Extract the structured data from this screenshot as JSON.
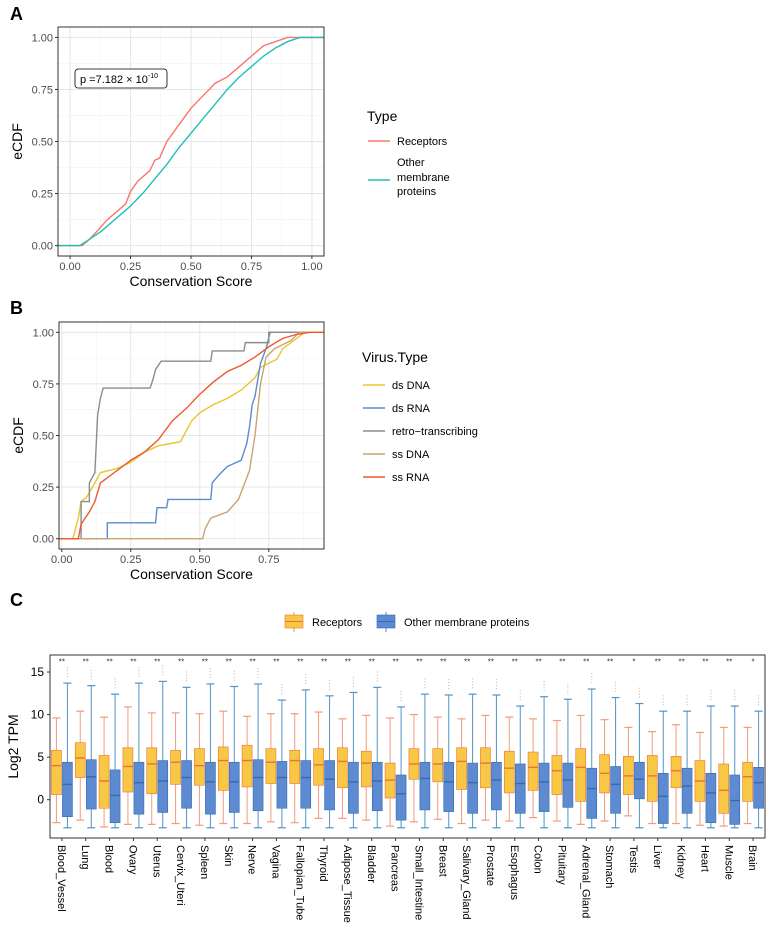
{
  "chart_data": [
    {
      "panel": "A",
      "type": "line",
      "xlabel": "Conservation Score",
      "ylabel": "eCDF",
      "xlim": [
        -0.05,
        1.05
      ],
      "ylim": [
        -0.05,
        1.05
      ],
      "xticks": [
        "0.00",
        "0.25",
        "0.50",
        "0.75",
        "1.00"
      ],
      "yticks": [
        "0.00",
        "0.25",
        "0.50",
        "0.75",
        "1.00"
      ],
      "grid": true,
      "annotation": {
        "prefix": "p =7.182 × 10",
        "exponent": "-10"
      },
      "legend": {
        "title": "Type",
        "placement": "right",
        "entries": [
          "Receptors",
          "Other",
          "membrane",
          "proteins"
        ]
      },
      "series": [
        {
          "name": "Receptors",
          "color": "#F8766D",
          "points": [
            [
              -0.05,
              0
            ],
            [
              0.05,
              0
            ],
            [
              0.08,
              0.03
            ],
            [
              0.12,
              0.08
            ],
            [
              0.15,
              0.12
            ],
            [
              0.2,
              0.17
            ],
            [
              0.23,
              0.2
            ],
            [
              0.25,
              0.26
            ],
            [
              0.28,
              0.31
            ],
            [
              0.3,
              0.33
            ],
            [
              0.33,
              0.36
            ],
            [
              0.35,
              0.41
            ],
            [
              0.37,
              0.42
            ],
            [
              0.4,
              0.5
            ],
            [
              0.45,
              0.58
            ],
            [
              0.5,
              0.66
            ],
            [
              0.55,
              0.72
            ],
            [
              0.6,
              0.78
            ],
            [
              0.65,
              0.81
            ],
            [
              0.7,
              0.86
            ],
            [
              0.75,
              0.91
            ],
            [
              0.8,
              0.96
            ],
            [
              0.85,
              0.98
            ],
            [
              0.9,
              1.0
            ],
            [
              1.05,
              1.0
            ]
          ]
        },
        {
          "name": "Other membrane proteins",
          "color": "#1FBFB8",
          "points": [
            [
              -0.05,
              0
            ],
            [
              0.04,
              0
            ],
            [
              0.08,
              0.03
            ],
            [
              0.13,
              0.07
            ],
            [
              0.2,
              0.14
            ],
            [
              0.25,
              0.19
            ],
            [
              0.3,
              0.25
            ],
            [
              0.35,
              0.32
            ],
            [
              0.4,
              0.39
            ],
            [
              0.45,
              0.47
            ],
            [
              0.5,
              0.54
            ],
            [
              0.55,
              0.61
            ],
            [
              0.6,
              0.68
            ],
            [
              0.65,
              0.75
            ],
            [
              0.7,
              0.81
            ],
            [
              0.75,
              0.86
            ],
            [
              0.8,
              0.91
            ],
            [
              0.85,
              0.95
            ],
            [
              0.9,
              0.98
            ],
            [
              0.95,
              1.0
            ],
            [
              1.05,
              1.0
            ]
          ]
        }
      ]
    },
    {
      "panel": "B",
      "type": "line",
      "xlabel": "Conservation Score",
      "ylabel": "eCDF",
      "xlim": [
        -0.01,
        0.95
      ],
      "ylim": [
        -0.05,
        1.05
      ],
      "xticks": [
        "0.00",
        "0.25",
        "0.50",
        "0.75"
      ],
      "yticks": [
        "0.00",
        "0.25",
        "0.50",
        "0.75",
        "1.00"
      ],
      "grid": true,
      "legend": {
        "title": "Virus.Type",
        "placement": "right"
      },
      "series": [
        {
          "name": "ds DNA",
          "color": "#E8C530",
          "points": [
            [
              -0.01,
              0
            ],
            [
              0.04,
              0
            ],
            [
              0.06,
              0.1
            ],
            [
              0.07,
              0.18
            ],
            [
              0.09,
              0.2
            ],
            [
              0.12,
              0.27
            ],
            [
              0.14,
              0.32
            ],
            [
              0.2,
              0.34
            ],
            [
              0.25,
              0.37
            ],
            [
              0.3,
              0.42
            ],
            [
              0.35,
              0.45
            ],
            [
              0.43,
              0.47
            ],
            [
              0.47,
              0.57
            ],
            [
              0.5,
              0.61
            ],
            [
              0.55,
              0.65
            ],
            [
              0.6,
              0.68
            ],
            [
              0.65,
              0.72
            ],
            [
              0.7,
              0.78
            ],
            [
              0.72,
              0.83
            ],
            [
              0.78,
              0.87
            ],
            [
              0.8,
              0.92
            ],
            [
              0.85,
              0.97
            ],
            [
              0.88,
              1
            ],
            [
              0.95,
              1
            ]
          ]
        },
        {
          "name": "ds RNA",
          "color": "#5B8BD0",
          "points": [
            [
              -0.01,
              0
            ],
            [
              0.165,
              0
            ],
            [
              0.165,
              0.077
            ],
            [
              0.34,
              0.077
            ],
            [
              0.345,
              0.15
            ],
            [
              0.38,
              0.15
            ],
            [
              0.385,
              0.19
            ],
            [
              0.54,
              0.19
            ],
            [
              0.545,
              0.27
            ],
            [
              0.57,
              0.31
            ],
            [
              0.6,
              0.35
            ],
            [
              0.65,
              0.38
            ],
            [
              0.67,
              0.46
            ],
            [
              0.68,
              0.54
            ],
            [
              0.69,
              0.65
            ],
            [
              0.7,
              0.69
            ],
            [
              0.72,
              0.85
            ],
            [
              0.74,
              0.92
            ],
            [
              0.755,
              1.0
            ],
            [
              0.95,
              1
            ]
          ]
        },
        {
          "name": "retro−transcribing",
          "color": "#8C8C8C",
          "points": [
            [
              -0.01,
              0
            ],
            [
              0.07,
              0
            ],
            [
              0.07,
              0.18
            ],
            [
              0.1,
              0.18
            ],
            [
              0.1,
              0.27
            ],
            [
              0.12,
              0.32
            ],
            [
              0.13,
              0.6
            ],
            [
              0.14,
              0.68
            ],
            [
              0.15,
              0.73
            ],
            [
              0.32,
              0.73
            ],
            [
              0.33,
              0.77
            ],
            [
              0.34,
              0.82
            ],
            [
              0.36,
              0.86
            ],
            [
              0.54,
              0.86
            ],
            [
              0.545,
              0.91
            ],
            [
              0.66,
              0.91
            ],
            [
              0.665,
              0.95
            ],
            [
              0.75,
              0.95
            ],
            [
              0.75,
              1
            ],
            [
              0.95,
              1
            ]
          ]
        },
        {
          "name": "ss DNA",
          "color": "#C8A46E",
          "points": [
            [
              -0.01,
              0
            ],
            [
              0.51,
              0
            ],
            [
              0.52,
              0.05
            ],
            [
              0.54,
              0.1
            ],
            [
              0.6,
              0.13
            ],
            [
              0.64,
              0.19
            ],
            [
              0.68,
              0.33
            ],
            [
              0.7,
              0.5
            ],
            [
              0.72,
              0.75
            ],
            [
              0.74,
              0.88
            ],
            [
              0.77,
              0.92
            ],
            [
              0.83,
              0.96
            ],
            [
              0.86,
              1
            ],
            [
              0.95,
              1
            ]
          ]
        },
        {
          "name": "ss RNA",
          "color": "#EE5A30",
          "points": [
            [
              -0.01,
              0
            ],
            [
              0.06,
              0
            ],
            [
              0.07,
              0.07
            ],
            [
              0.1,
              0.13
            ],
            [
              0.12,
              0.18
            ],
            [
              0.14,
              0.27
            ],
            [
              0.18,
              0.31
            ],
            [
              0.25,
              0.38
            ],
            [
              0.3,
              0.42
            ],
            [
              0.35,
              0.48
            ],
            [
              0.4,
              0.57
            ],
            [
              0.45,
              0.63
            ],
            [
              0.5,
              0.7
            ],
            [
              0.55,
              0.76
            ],
            [
              0.6,
              0.81
            ],
            [
              0.65,
              0.84
            ],
            [
              0.7,
              0.88
            ],
            [
              0.75,
              0.93
            ],
            [
              0.8,
              0.97
            ],
            [
              0.85,
              0.99
            ],
            [
              0.9,
              1
            ],
            [
              0.95,
              1
            ]
          ]
        }
      ]
    },
    {
      "panel": "C",
      "type": "box",
      "ylabel": "Log2 TPM",
      "ylim": [
        -4.5,
        17
      ],
      "yticks": [
        "0",
        "5",
        "10",
        "15"
      ],
      "grid": false,
      "legend": {
        "placement": "top",
        "entries": [
          {
            "name": "Receptors",
            "fill": "#F8C744",
            "stroke": "#E8743B"
          },
          {
            "name": "Other membrane proteins",
            "fill": "#5D8AD0",
            "stroke": "#2E6DAE"
          }
        ]
      },
      "stat_format": "[lower_whisker, q1, median, q3, upper_whisker]",
      "categories": [
        "Blood_Vessel",
        "Lung",
        "Blood",
        "Ovary",
        "Uterus",
        "Cervix_Uteri",
        "Spleen",
        "Skin",
        "Nerve",
        "Vagina",
        "Fallopian_Tube",
        "Thyroid",
        "Adipose_Tissue",
        "Bladder",
        "Pancreas",
        "Small_Intestine",
        "Breast",
        "Salivary_Gland",
        "Prostate",
        "Esophagus",
        "Colon",
        "Pituitary",
        "Adrenal_Gland",
        "Stomach",
        "Testis",
        "Liver",
        "Kidney",
        "Heart",
        "Muscle",
        "Brain"
      ],
      "significance": [
        "**",
        "**",
        "**",
        "**",
        "**",
        "**",
        "**",
        "**",
        "**",
        "**",
        "**",
        "**",
        "**",
        "**",
        "**",
        "**",
        "**",
        "**",
        "**",
        "**",
        "**",
        "**",
        "**",
        "**",
        "*",
        "**",
        "**",
        "**",
        "**",
        "*"
      ],
      "receptors": [
        [
          -2.7,
          0.6,
          4.0,
          5.8,
          9.6
        ],
        [
          -2.4,
          2.6,
          4.9,
          6.7,
          10.4
        ],
        [
          -3.2,
          -1.0,
          2.2,
          5.2,
          9.7
        ],
        [
          -2.9,
          0.9,
          3.9,
          6.1,
          10.9
        ],
        [
          -2.9,
          0.7,
          4.2,
          6.1,
          10.2
        ],
        [
          -2.8,
          1.8,
          4.4,
          5.8,
          10.2
        ],
        [
          -3.0,
          1.7,
          4.0,
          6.0,
          10.1
        ],
        [
          -2.8,
          1.1,
          4.6,
          6.2,
          10.4
        ],
        [
          -2.8,
          1.5,
          4.6,
          6.4,
          9.8
        ],
        [
          -2.6,
          1.9,
          4.4,
          6.0,
          10.1
        ],
        [
          -2.7,
          1.9,
          4.6,
          5.8,
          10.1
        ],
        [
          -2.2,
          1.7,
          4.1,
          6.0,
          10.3
        ],
        [
          -2.2,
          1.4,
          4.5,
          6.1,
          9.5
        ],
        [
          -2.4,
          1.5,
          4.3,
          5.7,
          9.9
        ],
        [
          -3.1,
          0.2,
          2.3,
          4.3,
          9.6
        ],
        [
          -2.6,
          2.4,
          4.2,
          6.0,
          10.0
        ],
        [
          -2.3,
          2.1,
          4.2,
          6.0,
          9.7
        ],
        [
          -2.8,
          1.2,
          4.5,
          6.1,
          9.5
        ],
        [
          -2.4,
          1.4,
          4.3,
          6.1,
          9.9
        ],
        [
          -2.5,
          0.8,
          3.7,
          5.7,
          9.7
        ],
        [
          -2.1,
          1.1,
          3.8,
          5.6,
          9.5
        ],
        [
          -2.5,
          0.6,
          3.4,
          5.2,
          9.3
        ],
        [
          -2.9,
          -0.2,
          3.8,
          6.0,
          9.9
        ],
        [
          -2.5,
          0.8,
          3.1,
          5.3,
          9.4
        ],
        [
          -1.9,
          0.6,
          2.8,
          5.1,
          8.5
        ],
        [
          -2.8,
          -0.2,
          2.8,
          5.2,
          8.0
        ],
        [
          -2.8,
          1.4,
          3.4,
          5.1,
          8.8
        ],
        [
          -3.0,
          -0.2,
          2.2,
          4.6,
          7.9
        ],
        [
          -3.1,
          -1.6,
          1.1,
          4.2,
          8.5
        ],
        [
          -2.8,
          -0.2,
          2.7,
          4.4,
          8.5
        ]
      ],
      "others": [
        [
          -3.3,
          -2.0,
          1.8,
          4.4,
          13.7
        ],
        [
          -3.3,
          -1.1,
          2.7,
          4.7,
          13.4
        ],
        [
          -3.3,
          -2.7,
          0.5,
          3.5,
          12.4
        ],
        [
          -3.3,
          -1.7,
          2.0,
          4.4,
          13.7
        ],
        [
          -3.3,
          -1.5,
          2.2,
          4.6,
          13.9
        ],
        [
          -3.3,
          -1.0,
          2.6,
          4.6,
          13.2
        ],
        [
          -3.3,
          -1.7,
          2.1,
          4.4,
          13.6
        ],
        [
          -3.3,
          -1.5,
          2.1,
          4.4,
          13.3
        ],
        [
          -3.3,
          -1.3,
          2.6,
          4.7,
          13.6
        ],
        [
          -3.3,
          -1.0,
          2.6,
          4.5,
          11.7
        ],
        [
          -3.3,
          -1.0,
          2.6,
          4.6,
          12.9
        ],
        [
          -3.3,
          -1.2,
          2.4,
          4.6,
          12.2
        ],
        [
          -3.3,
          -1.6,
          2.1,
          4.4,
          12.6
        ],
        [
          -3.3,
          -1.3,
          2.2,
          4.4,
          13.2
        ],
        [
          -3.3,
          -2.4,
          0.7,
          2.9,
          10.9
        ],
        [
          -3.3,
          -1.2,
          2.5,
          4.4,
          12.4
        ],
        [
          -3.3,
          -1.4,
          2.1,
          4.4,
          12.3
        ],
        [
          -3.3,
          -1.6,
          2.0,
          4.3,
          12.4
        ],
        [
          -3.3,
          -1.2,
          2.3,
          4.4,
          12.3
        ],
        [
          -3.3,
          -1.6,
          1.9,
          4.2,
          11.0
        ],
        [
          -3.3,
          -1.4,
          2.1,
          4.3,
          12.1
        ],
        [
          -3.3,
          -0.9,
          2.3,
          4.3,
          11.8
        ],
        [
          -3.3,
          -2.2,
          1.3,
          3.7,
          13.0
        ],
        [
          -3.3,
          -1.6,
          1.8,
          3.9,
          12.0
        ],
        [
          -3.3,
          0.1,
          2.4,
          4.4,
          11.3
        ],
        [
          -3.3,
          -2.8,
          0.4,
          3.1,
          10.4
        ],
        [
          -3.3,
          -1.6,
          1.6,
          3.7,
          10.4
        ],
        [
          -3.3,
          -2.7,
          0.8,
          3.1,
          11.0
        ],
        [
          -3.3,
          -2.9,
          -0.1,
          2.9,
          11.0
        ],
        [
          -3.3,
          -1.0,
          2.0,
          3.8,
          10.4
        ]
      ]
    }
  ],
  "panels": {
    "a": "A",
    "b": "B",
    "c": "C"
  }
}
